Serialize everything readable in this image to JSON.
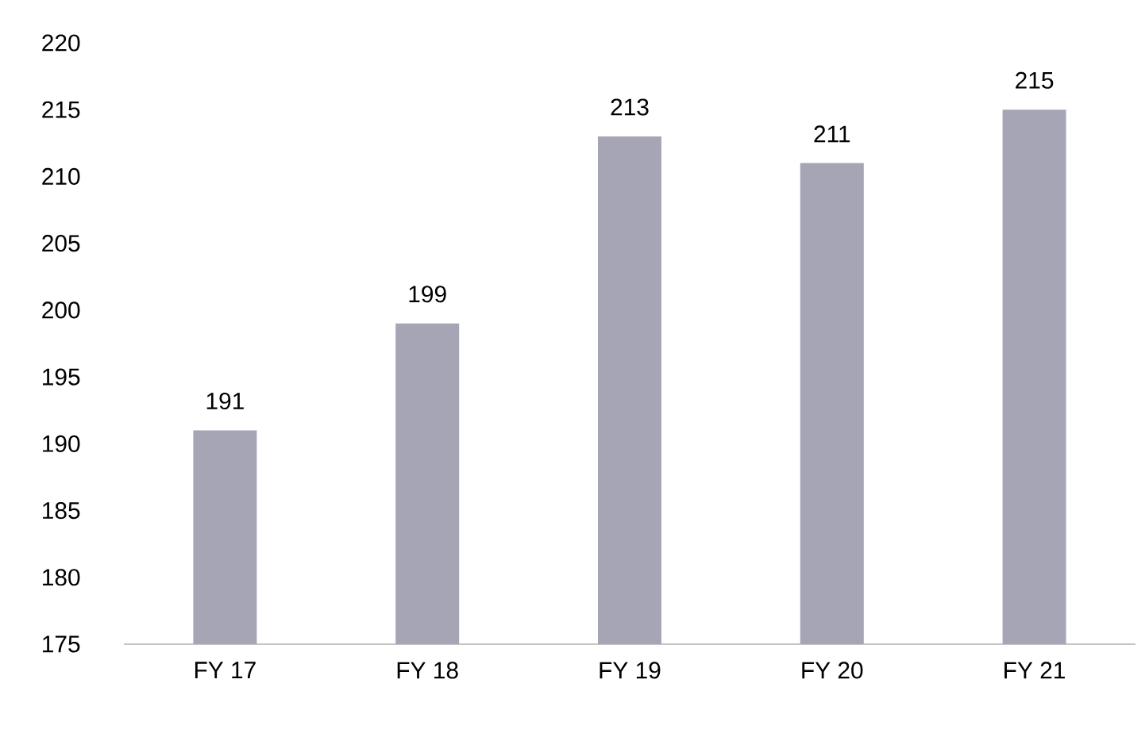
{
  "chart_data": {
    "type": "bar",
    "categories": [
      "FY 17",
      "FY 18",
      "FY 19",
      "FY 20",
      "FY 21"
    ],
    "values": [
      191,
      199,
      213,
      211,
      215
    ],
    "color": "#a6a5b6",
    "ylim": [
      175,
      220
    ],
    "yticks": [
      175,
      180,
      185,
      190,
      195,
      200,
      205,
      210,
      215,
      220
    ],
    "data_labels": true
  }
}
